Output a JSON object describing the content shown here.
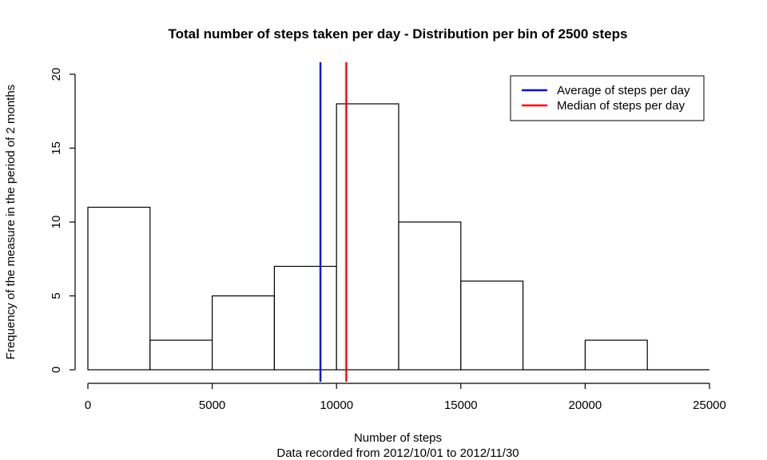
{
  "chart_data": {
    "type": "bar",
    "title": "Total number of steps taken per day - Distribution per bin of 2500 steps",
    "xlabel": "Number of steps",
    "xlabel_sub": "Data recorded from 2012/10/01 to 2012/11/30",
    "ylabel": "Frequency of the measure in the period of 2 months",
    "bin_width": 2500,
    "bins": [
      {
        "start": 0,
        "end": 2500,
        "count": 11
      },
      {
        "start": 2500,
        "end": 5000,
        "count": 2
      },
      {
        "start": 5000,
        "end": 7500,
        "count": 5
      },
      {
        "start": 7500,
        "end": 10000,
        "count": 7
      },
      {
        "start": 10000,
        "end": 12500,
        "count": 18
      },
      {
        "start": 12500,
        "end": 15000,
        "count": 10
      },
      {
        "start": 15000,
        "end": 17500,
        "count": 6
      },
      {
        "start": 17500,
        "end": 20000,
        "count": 0
      },
      {
        "start": 20000,
        "end": 22500,
        "count": 2
      },
      {
        "start": 22500,
        "end": 25000,
        "count": 0
      }
    ],
    "xlim": [
      0,
      25000
    ],
    "ylim": [
      0,
      20
    ],
    "x_ticks": [
      "0",
      "5000",
      "10000",
      "15000",
      "20000",
      "25000"
    ],
    "y_ticks": [
      "0",
      "5",
      "10",
      "15",
      "20"
    ],
    "reference_lines": [
      {
        "name": "Average of steps per day",
        "x": 9354,
        "color": "#0000ff"
      },
      {
        "name": "Median of steps per day",
        "x": 10395,
        "color": "#ff0000"
      }
    ],
    "legend": {
      "position": "top-right",
      "entries": [
        {
          "label": "Average of steps per day",
          "color": "#0000ff"
        },
        {
          "label": "Median of steps per day",
          "color": "#ff0000"
        }
      ]
    },
    "grid": false,
    "bar_fill": "#ffffff",
    "bar_stroke": "#000000"
  }
}
